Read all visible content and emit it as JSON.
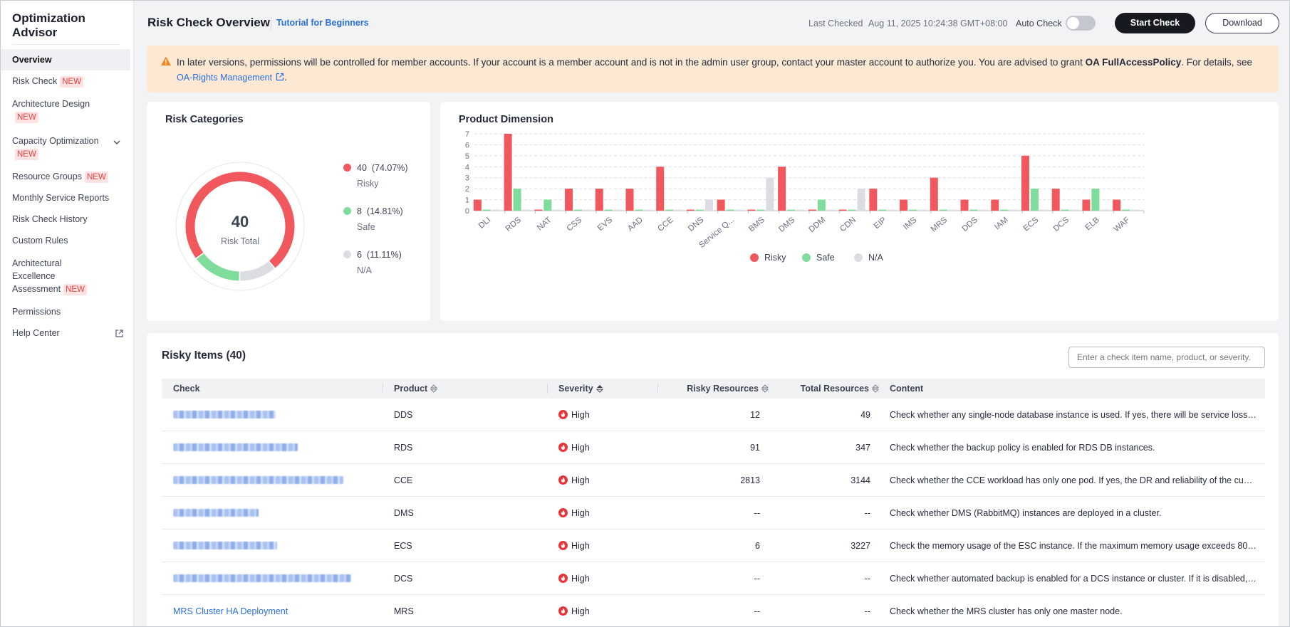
{
  "sidebar": {
    "title": "Optimization Advisor",
    "items": [
      {
        "label": "Overview",
        "badge": ""
      },
      {
        "label": "Risk Check",
        "badge": "NEW"
      },
      {
        "label": "Architecture Design",
        "badge": "NEW"
      },
      {
        "label": "Capacity Optimization",
        "badge": "NEW"
      },
      {
        "label": "Resource Groups",
        "badge": "NEW"
      },
      {
        "label": "Monthly Service Reports",
        "badge": ""
      },
      {
        "label": "Risk Check History",
        "badge": ""
      },
      {
        "label": "Custom Rules",
        "badge": ""
      },
      {
        "label": "Architectural Excellence Assessment",
        "badge": "NEW"
      },
      {
        "label": "Permissions",
        "badge": ""
      },
      {
        "label": "Help Center",
        "badge": ""
      }
    ]
  },
  "header": {
    "title": "Risk Check Overview",
    "tutorial_link": "Tutorial for Beginners",
    "last_checked_label": "Last Checked",
    "last_checked_value": "Aug 11, 2025 10:24:38 GMT+08:00",
    "auto_check_label": "Auto Check",
    "auto_check_on": false,
    "start_check_label": "Start Check",
    "download_label": "Download"
  },
  "notice": {
    "text_before": "In later versions, permissions will be controlled for member accounts. If your account is a member account and is not in the admin user group, contact your master account to authorize you. You are advised to grant ",
    "policy": "OA FullAccessPolicy",
    "text_after": ". For details, see ",
    "link": "OA-Rights Management",
    "end": "."
  },
  "risk_categories": {
    "title": "Risk Categories",
    "total": "40",
    "total_label": "Risk Total",
    "legend": [
      {
        "value": "40",
        "pct": "(74.07%)",
        "label": "Risky",
        "color": "#f0585e",
        "count": 40
      },
      {
        "value": "8",
        "pct": "(14.81%)",
        "label": "Safe",
        "color": "#7fdc9b",
        "count": 8
      },
      {
        "value": "6",
        "pct": "(11.11%)",
        "label": "N/A",
        "color": "#dcdde2",
        "count": 6
      }
    ]
  },
  "chart_data": {
    "type": "bar",
    "title": "Product Dimension",
    "categories": [
      "DLI",
      "RDS",
      "NAT",
      "CSS",
      "EVS",
      "AAD",
      "CCE",
      "DNS",
      "Service Q...",
      "BMS",
      "DMS",
      "DDM",
      "CDN",
      "EIP",
      "IMS",
      "MRS",
      "DDS",
      "IAM",
      "ECS",
      "DCS",
      "ELB",
      "WAF"
    ],
    "series": [
      {
        "name": "Risky",
        "color": "#f0585e",
        "values": [
          1,
          7,
          0,
          2,
          2,
          2,
          4,
          0,
          1,
          0,
          4,
          0,
          0,
          2,
          1,
          3,
          1,
          1,
          5,
          2,
          1,
          1
        ]
      },
      {
        "name": "Safe",
        "color": "#7fdc9b",
        "values": [
          0,
          2,
          1,
          0,
          0,
          0,
          0,
          0,
          0,
          0,
          0,
          1,
          0,
          0,
          0,
          0,
          0,
          0,
          2,
          0,
          2,
          0
        ]
      },
      {
        "name": "N/A",
        "color": "#dcdde2",
        "values": [
          0,
          0,
          0,
          0,
          0,
          0,
          0,
          1,
          0,
          3,
          0,
          0,
          2,
          0,
          0,
          0,
          0,
          0,
          0,
          0,
          0,
          0
        ]
      }
    ],
    "yticks": [
      "0",
      "1",
      "2",
      "3",
      "4",
      "5",
      "6",
      "7"
    ],
    "ylim": [
      0,
      7
    ],
    "grid": true,
    "legend_position": "bottom"
  },
  "risky_items": {
    "title": "Risky Items (40)",
    "search_placeholder": "Enter a check item name, product, or severity.",
    "columns": [
      "Check",
      "Product",
      "Severity",
      "Risky Resources",
      "Total Resources",
      "Content"
    ],
    "rows": [
      {
        "check": "",
        "product": "DDS",
        "severity": "High",
        "risky": "12",
        "total": "49",
        "content": "Check whether any single-node database instance is used. If yes, there will be service loss o..."
      },
      {
        "check": "",
        "product": "RDS",
        "severity": "High",
        "risky": "91",
        "total": "347",
        "content": "Check whether the backup policy is enabled for RDS DB instances."
      },
      {
        "check": "",
        "product": "CCE",
        "severity": "High",
        "risky": "2813",
        "total": "3144",
        "content": "Check whether the CCE workload has only one pod. If yes, the DR and reliability of the custo..."
      },
      {
        "check": "",
        "product": "DMS",
        "severity": "High",
        "risky": "--",
        "total": "--",
        "content": "Check whether DMS (RabbitMQ) instances are deployed in a cluster."
      },
      {
        "check": "",
        "product": "ECS",
        "severity": "High",
        "risky": "6",
        "total": "3227",
        "content": "Check the memory usage of the ESC instance. If the maximum memory usage exceeds 80.0..."
      },
      {
        "check": "",
        "product": "DCS",
        "severity": "High",
        "risky": "--",
        "total": "--",
        "content": "Check whether automated backup is enabled for a DCS instance or cluster. If it is disabled, d..."
      },
      {
        "check": "MRS Cluster HA Deployment",
        "product": "MRS",
        "severity": "High",
        "risky": "--",
        "total": "--",
        "content": "Check whether the MRS cluster has only one master node."
      }
    ]
  }
}
